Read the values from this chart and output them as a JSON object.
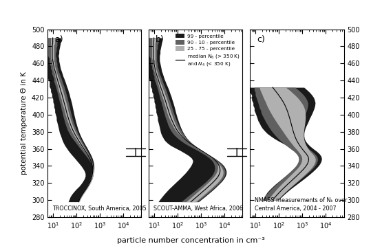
{
  "theta_min": 280,
  "theta_max": 500,
  "x_min": 6,
  "x_max": 60000,
  "color_p99": "#1a1a1a",
  "color_p90_10": "#606060",
  "color_p25_75": "#b0b0b0",
  "color_median": "#000000",
  "background": "#ffffff",
  "ylabel": "potential temperature Θ in K",
  "xlabel": "particle number concentration in cm⁻³",
  "yticks": [
    280,
    300,
    320,
    340,
    360,
    380,
    400,
    420,
    440,
    460,
    480,
    500
  ],
  "panel_labels": [
    "a)",
    "b)",
    "c)"
  ],
  "panel_titles": [
    "TROCCINOX, South America, 2005",
    "SCOUT-AMMA, West Africa, 2006",
    "NMASS measurements of Nₖ over\nCentral America, 2004 - 2007"
  ],
  "panel_a": {
    "theta": [
      490,
      487,
      484,
      481,
      478,
      475,
      472,
      469,
      466,
      463,
      460,
      457,
      454,
      451,
      448,
      445,
      442,
      439,
      436,
      433,
      430,
      427,
      424,
      421,
      418,
      415,
      412,
      409,
      406,
      403,
      400,
      397,
      394,
      391,
      388,
      385,
      382,
      379,
      376,
      373,
      370,
      367,
      364,
      361,
      358,
      355,
      352,
      349,
      346,
      343,
      340,
      337,
      334,
      331,
      328,
      325,
      322,
      319,
      316,
      313,
      310,
      307,
      304,
      301,
      298
    ],
    "p99_lo": [
      5,
      5,
      5,
      5,
      5,
      5,
      5,
      5,
      5,
      5,
      5,
      5,
      5,
      6,
      6,
      6,
      6,
      7,
      7,
      7,
      8,
      8,
      9,
      9,
      10,
      10,
      11,
      11,
      12,
      12,
      13,
      14,
      14,
      15,
      16,
      17,
      18,
      19,
      21,
      23,
      25,
      28,
      32,
      38,
      45,
      55,
      68,
      85,
      105,
      130,
      160,
      190,
      220,
      240,
      240,
      220,
      190,
      160,
      130,
      100,
      80,
      65,
      55,
      50,
      45
    ],
    "p99_hi": [
      22,
      22,
      21,
      20,
      19,
      18,
      18,
      17,
      18,
      18,
      19,
      20,
      21,
      23,
      25,
      27,
      30,
      33,
      36,
      39,
      43,
      46,
      50,
      53,
      57,
      61,
      65,
      68,
      72,
      76,
      80,
      85,
      90,
      96,
      103,
      111,
      120,
      132,
      147,
      165,
      188,
      215,
      248,
      288,
      330,
      380,
      430,
      480,
      520,
      550,
      565,
      565,
      550,
      530,
      500,
      460,
      410,
      360,
      310,
      265,
      225,
      190,
      165,
      145,
      130
    ],
    "p90_lo": [
      6,
      6,
      6,
      6,
      6,
      6,
      6,
      6,
      7,
      7,
      7,
      8,
      8,
      9,
      9,
      10,
      11,
      11,
      12,
      13,
      14,
      15,
      16,
      17,
      18,
      19,
      21,
      22,
      23,
      25,
      26,
      28,
      30,
      32,
      35,
      38,
      42,
      48,
      55,
      65,
      78,
      95,
      115,
      140,
      170,
      210,
      255,
      310,
      370,
      430,
      480,
      510,
      530,
      530,
      510,
      475,
      425,
      375,
      320,
      270,
      225,
      190,
      162,
      140,
      125
    ],
    "p90_hi": [
      16,
      16,
      15,
      15,
      14,
      14,
      13,
      13,
      14,
      14,
      15,
      15,
      16,
      17,
      19,
      21,
      23,
      25,
      27,
      30,
      32,
      35,
      37,
      40,
      42,
      45,
      48,
      51,
      54,
      57,
      61,
      65,
      70,
      76,
      83,
      91,
      101,
      113,
      128,
      145,
      165,
      189,
      217,
      250,
      288,
      330,
      375,
      420,
      460,
      490,
      505,
      505,
      492,
      472,
      445,
      410,
      368,
      323,
      278,
      237,
      200,
      170,
      147,
      130,
      118
    ],
    "p75_lo": [
      8,
      8,
      8,
      8,
      8,
      8,
      8,
      8,
      8,
      9,
      9,
      10,
      10,
      11,
      12,
      12,
      13,
      14,
      15,
      16,
      17,
      18,
      20,
      21,
      23,
      24,
      26,
      28,
      30,
      32,
      34,
      37,
      40,
      44,
      48,
      53,
      59,
      67,
      77,
      90,
      106,
      126,
      150,
      180,
      215,
      258,
      308,
      362,
      415,
      462,
      500,
      522,
      530,
      525,
      505,
      474,
      433,
      385,
      333,
      283,
      238,
      200,
      170,
      148,
      133
    ],
    "p75_hi": [
      12,
      12,
      12,
      11,
      11,
      11,
      11,
      11,
      11,
      11,
      12,
      12,
      13,
      14,
      15,
      16,
      18,
      19,
      21,
      23,
      25,
      27,
      29,
      31,
      33,
      36,
      38,
      41,
      43,
      46,
      49,
      53,
      57,
      62,
      68,
      75,
      84,
      95,
      108,
      124,
      143,
      165,
      191,
      222,
      257,
      296,
      338,
      380,
      418,
      450,
      470,
      476,
      468,
      453,
      431,
      402,
      366,
      325,
      282,
      241,
      203,
      172,
      148,
      130,
      118
    ]
  },
  "panel_b": {
    "theta": [
      490,
      487,
      484,
      481,
      478,
      475,
      472,
      469,
      466,
      463,
      460,
      457,
      454,
      451,
      448,
      445,
      442,
      439,
      436,
      433,
      430,
      427,
      424,
      421,
      418,
      415,
      412,
      409,
      406,
      403,
      400,
      397,
      394,
      391,
      388,
      385,
      382,
      379,
      376,
      373,
      370,
      367,
      364,
      361,
      358,
      355,
      352,
      349,
      346,
      343,
      340,
      337,
      334,
      331,
      328,
      325,
      322,
      319,
      316,
      313,
      310,
      307,
      304,
      301,
      298
    ],
    "p99_lo": [
      5,
      5,
      5,
      5,
      5,
      5,
      5,
      5,
      5,
      5,
      5,
      5,
      5,
      6,
      6,
      6,
      6,
      7,
      7,
      7,
      8,
      8,
      9,
      9,
      10,
      10,
      11,
      11,
      12,
      12,
      13,
      14,
      14,
      15,
      16,
      17,
      18,
      19,
      21,
      24,
      28,
      36,
      50,
      80,
      130,
      200,
      300,
      400,
      450,
      420,
      370,
      310,
      255,
      205,
      160,
      125,
      95,
      73,
      56,
      43,
      34,
      27,
      22,
      18,
      15
    ],
    "p99_hi": [
      22,
      22,
      21,
      20,
      19,
      18,
      18,
      17,
      17,
      17,
      18,
      19,
      20,
      21,
      23,
      25,
      27,
      30,
      33,
      37,
      41,
      45,
      49,
      54,
      58,
      63,
      68,
      73,
      78,
      83,
      89,
      96,
      104,
      113,
      124,
      137,
      153,
      174,
      203,
      243,
      300,
      385,
      520,
      720,
      1050,
      1600,
      2500,
      3800,
      5500,
      7500,
      9500,
      11000,
      12000,
      12000,
      11000,
      9500,
      7800,
      6100,
      4700,
      3600,
      2700,
      2000,
      1480,
      1080,
      790
    ],
    "p90_lo": [
      6,
      6,
      6,
      6,
      6,
      6,
      6,
      6,
      7,
      7,
      7,
      8,
      8,
      9,
      9,
      10,
      10,
      11,
      12,
      13,
      14,
      15,
      16,
      17,
      18,
      20,
      21,
      23,
      24,
      26,
      28,
      30,
      33,
      36,
      39,
      44,
      50,
      59,
      73,
      95,
      130,
      185,
      280,
      450,
      720,
      1100,
      1650,
      2300,
      3000,
      3500,
      3800,
      3900,
      3700,
      3300,
      2800,
      2200,
      1700,
      1280,
      940,
      690,
      500,
      365,
      265,
      195,
      143
    ],
    "p90_hi": [
      16,
      16,
      15,
      14,
      14,
      13,
      13,
      13,
      13,
      13,
      14,
      14,
      15,
      16,
      17,
      19,
      21,
      23,
      25,
      28,
      31,
      34,
      37,
      40,
      44,
      48,
      52,
      57,
      61,
      66,
      72,
      79,
      87,
      97,
      108,
      122,
      139,
      161,
      192,
      237,
      300,
      393,
      540,
      760,
      1100,
      1650,
      2500,
      3700,
      5200,
      6800,
      8500,
      9800,
      10700,
      10700,
      9900,
      8500,
      7000,
      5500,
      4200,
      3200,
      2400,
      1780,
      1310,
      970,
      710
    ],
    "p75_lo": [
      8,
      8,
      8,
      8,
      8,
      8,
      8,
      8,
      8,
      9,
      9,
      9,
      10,
      10,
      11,
      12,
      13,
      14,
      15,
      16,
      17,
      19,
      20,
      22,
      24,
      26,
      28,
      30,
      33,
      35,
      38,
      42,
      47,
      53,
      60,
      69,
      81,
      98,
      123,
      162,
      225,
      325,
      490,
      750,
      1150,
      1700,
      2500,
      3400,
      4300,
      4900,
      5200,
      5200,
      4900,
      4350,
      3700,
      2950,
      2300,
      1750,
      1320,
      990,
      740,
      555,
      415,
      313,
      235
    ],
    "p75_hi": [
      12,
      12,
      11,
      11,
      11,
      11,
      11,
      11,
      11,
      11,
      11,
      12,
      12,
      13,
      14,
      15,
      17,
      18,
      20,
      22,
      24,
      27,
      29,
      32,
      35,
      38,
      41,
      44,
      48,
      52,
      57,
      62,
      68,
      76,
      85,
      96,
      110,
      128,
      153,
      189,
      242,
      323,
      450,
      645,
      950,
      1420,
      2100,
      3100,
      4300,
      5600,
      6900,
      8000,
      8800,
      8800,
      8200,
      7000,
      5700,
      4500,
      3400,
      2600,
      1940,
      1450,
      1080,
      800,
      592
    ]
  },
  "panel_c": {
    "theta": [
      432,
      429,
      426,
      423,
      420,
      417,
      414,
      411,
      408,
      405,
      402,
      399,
      396,
      393,
      390,
      387,
      384,
      381,
      378,
      375,
      372,
      369,
      366,
      363,
      360,
      357,
      354,
      351,
      348,
      345,
      342,
      339,
      336,
      333,
      330,
      327,
      324,
      321,
      318,
      315,
      312,
      309,
      306,
      303,
      300
    ],
    "p99_lo": [
      6,
      6,
      6,
      7,
      7,
      7,
      8,
      8,
      9,
      9,
      10,
      11,
      12,
      13,
      15,
      17,
      20,
      25,
      32,
      45,
      65,
      100,
      160,
      250,
      380,
      550,
      700,
      800,
      800,
      750,
      650,
      530,
      410,
      310,
      230,
      170,
      125,
      92,
      68,
      52,
      40,
      32,
      27,
      23,
      20
    ],
    "p99_hi": [
      1200,
      1600,
      2100,
      2600,
      3100,
      3400,
      3600,
      3500,
      3300,
      3000,
      2700,
      2400,
      2100,
      1900,
      1700,
      1500,
      1350,
      1250,
      1200,
      1200,
      1250,
      1400,
      1700,
      2200,
      3000,
      4200,
      5500,
      6500,
      6800,
      6400,
      5600,
      4600,
      3600,
      2750,
      2050,
      1500,
      1090,
      780,
      560,
      400,
      290,
      215,
      162,
      124,
      96
    ],
    "p90_lo": [
      9,
      9,
      10,
      10,
      11,
      12,
      13,
      14,
      15,
      17,
      18,
      20,
      23,
      26,
      30,
      35,
      41,
      49,
      60,
      75,
      95,
      125,
      168,
      230,
      320,
      450,
      580,
      680,
      710,
      680,
      600,
      500,
      390,
      300,
      228,
      172,
      130,
      98,
      74,
      57,
      44,
      35,
      28,
      23,
      20
    ],
    "p90_hi": [
      500,
      680,
      900,
      1150,
      1400,
      1600,
      1750,
      1750,
      1680,
      1560,
      1420,
      1280,
      1160,
      1060,
      980,
      920,
      880,
      860,
      860,
      890,
      950,
      1060,
      1240,
      1500,
      1900,
      2650,
      3500,
      4300,
      4600,
      4400,
      3900,
      3250,
      2580,
      1980,
      1490,
      1110,
      820,
      605,
      445,
      330,
      246,
      186,
      143,
      111,
      87
    ],
    "p75_lo": [
      15,
      16,
      18,
      20,
      22,
      25,
      28,
      31,
      35,
      40,
      46,
      53,
      62,
      73,
      86,
      102,
      122,
      145,
      172,
      205,
      245,
      295,
      360,
      440,
      550,
      680,
      820,
      940,
      980,
      940,
      840,
      710,
      570,
      445,
      345,
      267,
      207,
      160,
      124,
      97,
      77,
      62,
      50,
      41,
      35
    ],
    "p75_hi": [
      200,
      280,
      370,
      490,
      630,
      780,
      940,
      1100,
      1220,
      1310,
      1360,
      1380,
      1380,
      1350,
      1310,
      1260,
      1210,
      1170,
      1150,
      1150,
      1180,
      1250,
      1370,
      1560,
      1820,
      2200,
      2800,
      3400,
      3700,
      3600,
      3250,
      2750,
      2220,
      1730,
      1330,
      1010,
      762,
      571,
      427,
      320,
      241,
      184,
      142,
      111,
      87
    ]
  }
}
